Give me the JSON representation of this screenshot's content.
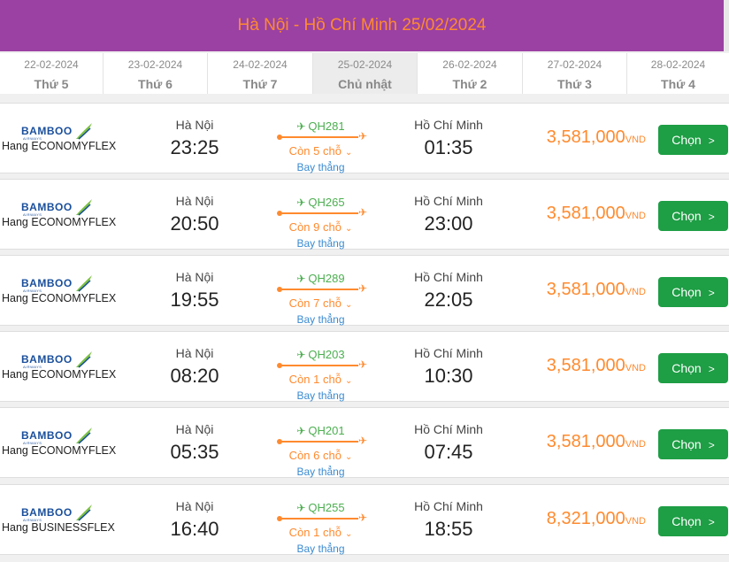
{
  "header": {
    "title": "Hà Nội - Hồ Chí Minh  25/02/2024",
    "bg": "#9b41a3",
    "title_color": "#ff8a2e"
  },
  "dates": [
    {
      "date": "22-02-2024",
      "weekday": "Thứ 5",
      "active": false
    },
    {
      "date": "23-02-2024",
      "weekday": "Thứ 6",
      "active": false
    },
    {
      "date": "24-02-2024",
      "weekday": "Thứ 7",
      "active": false
    },
    {
      "date": "25-02-2024",
      "weekday": "Chủ nhật",
      "active": true
    },
    {
      "date": "26-02-2024",
      "weekday": "Thứ 2",
      "active": false
    },
    {
      "date": "27-02-2024",
      "weekday": "Thứ 3",
      "active": false
    },
    {
      "date": "28-02-2024",
      "weekday": "Thứ 4",
      "active": false
    }
  ],
  "flights": [
    {
      "airline_logo": "BAMBOO",
      "airline_logo_sub": "AIRWAYS",
      "cabin": "Hang ECONOMYFLEX",
      "from_city": "Hà Nội",
      "depart": "23:25",
      "code": "QH281",
      "seats": "Còn 5 chỗ",
      "direct": "Bay thẳng",
      "to_city": "Hồ Chí Minh",
      "arrive": "01:35",
      "price": "3,581,000",
      "currency": "VND",
      "button": "Chọn"
    },
    {
      "airline_logo": "BAMBOO",
      "airline_logo_sub": "AIRWAYS",
      "cabin": "Hang ECONOMYFLEX",
      "from_city": "Hà Nội",
      "depart": "20:50",
      "code": "QH265",
      "seats": "Còn 9 chỗ",
      "direct": "Bay thẳng",
      "to_city": "Hồ Chí Minh",
      "arrive": "23:00",
      "price": "3,581,000",
      "currency": "VND",
      "button": "Chọn"
    },
    {
      "airline_logo": "BAMBOO",
      "airline_logo_sub": "AIRWAYS",
      "cabin": "Hang ECONOMYFLEX",
      "from_city": "Hà Nội",
      "depart": "19:55",
      "code": "QH289",
      "seats": "Còn 7 chỗ",
      "direct": "Bay thẳng",
      "to_city": "Hồ Chí Minh",
      "arrive": "22:05",
      "price": "3,581,000",
      "currency": "VND",
      "button": "Chọn"
    },
    {
      "airline_logo": "BAMBOO",
      "airline_logo_sub": "AIRWAYS",
      "cabin": "Hang ECONOMYFLEX",
      "from_city": "Hà Nội",
      "depart": "08:20",
      "code": "QH203",
      "seats": "Còn 1 chỗ",
      "direct": "Bay thẳng",
      "to_city": "Hồ Chí Minh",
      "arrive": "10:30",
      "price": "3,581,000",
      "currency": "VND",
      "button": "Chọn"
    },
    {
      "airline_logo": "BAMBOO",
      "airline_logo_sub": "AIRWAYS",
      "cabin": "Hang ECONOMYFLEX",
      "from_city": "Hà Nội",
      "depart": "05:35",
      "code": "QH201",
      "seats": "Còn 6 chỗ",
      "direct": "Bay thẳng",
      "to_city": "Hồ Chí Minh",
      "arrive": "07:45",
      "price": "3,581,000",
      "currency": "VND",
      "button": "Chọn"
    },
    {
      "airline_logo": "BAMBOO",
      "airline_logo_sub": "AIRWAYS",
      "cabin": "Hang BUSINESSFLEX",
      "from_city": "Hà Nội",
      "depart": "16:40",
      "code": "QH255",
      "seats": "Còn 1 chỗ",
      "direct": "Bay thẳng",
      "to_city": "Hồ Chí Minh",
      "arrive": "18:55",
      "price": "8,321,000",
      "currency": "VND",
      "button": "Chọn"
    }
  ],
  "colors": {
    "accent_orange": "#ff8a2e",
    "green_button": "#1e9e45",
    "flight_code_green": "#4caf50",
    "direct_blue": "#3b8bd0",
    "logo_blue": "#1a4f9c"
  }
}
